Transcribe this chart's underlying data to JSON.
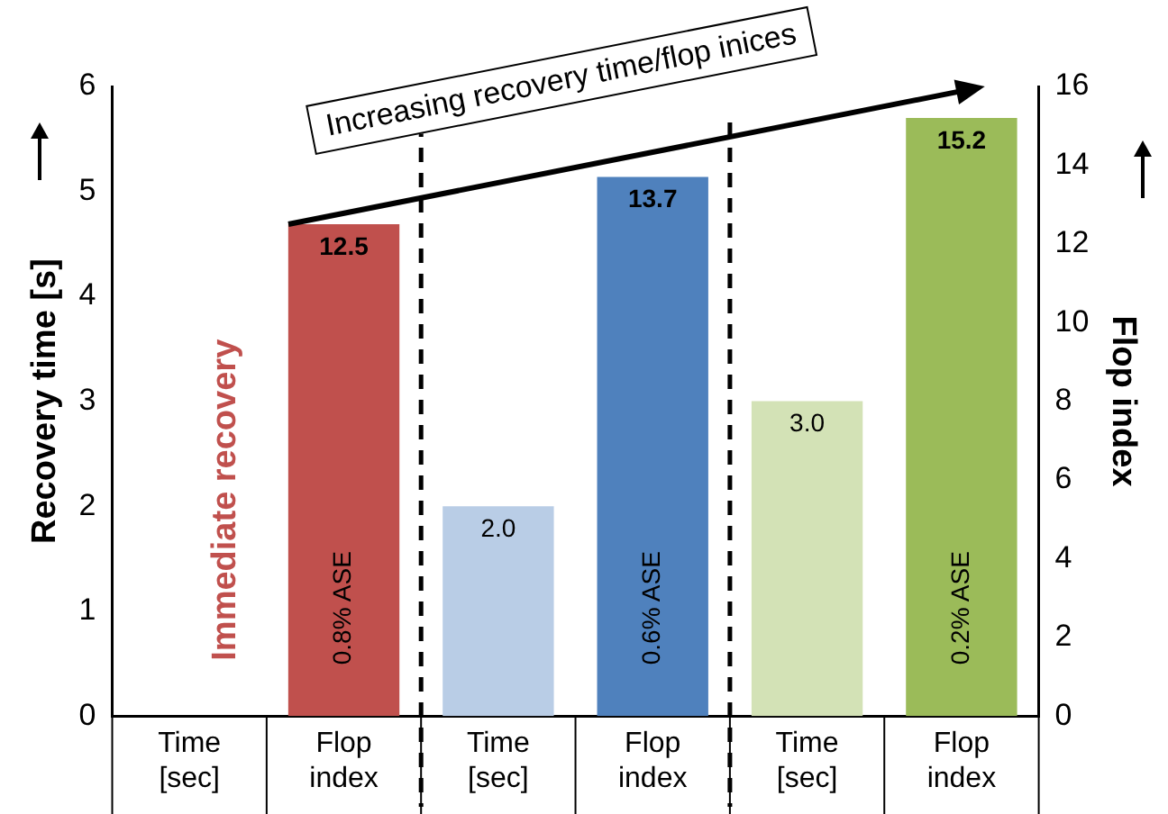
{
  "chart_data": {
    "type": "bar",
    "categories": [
      "Time [sec]",
      "Flop index",
      "Time [sec]",
      "Flop index",
      "Time [sec]",
      "Flop index"
    ],
    "ylabel": "Recovery time [s]",
    "y2label": "Flop index",
    "ylim": [
      0,
      6
    ],
    "yticks": [
      0,
      1,
      2,
      3,
      4,
      5,
      6
    ],
    "y2lim": [
      0,
      16
    ],
    "y2ticks": [
      0,
      2,
      4,
      6,
      8,
      10,
      12,
      14,
      16
    ],
    "series": [
      {
        "axis": "y",
        "values": [
          null,
          null,
          2.0,
          null,
          3.0,
          null
        ],
        "colors": [
          null,
          null,
          "#b9cde6",
          null,
          "#d3e2b6",
          null
        ],
        "value_labels": [
          null,
          null,
          "2.0",
          null,
          "3.0",
          null
        ]
      },
      {
        "axis": "y2",
        "values": [
          null,
          12.5,
          null,
          13.7,
          null,
          15.2
        ],
        "colors": [
          null,
          "#c0504d",
          null,
          "#4f81bd",
          null,
          "#9bbb59"
        ],
        "value_labels": [
          null,
          "12.5",
          null,
          "13.7",
          null,
          "15.2"
        ]
      }
    ],
    "annotations": [
      "Increasing recovery time/flop inices",
      "Immediate recovery",
      "0.8% ASE",
      "0.6% ASE",
      "0.2% ASE"
    ],
    "grid": false,
    "legend": false
  }
}
